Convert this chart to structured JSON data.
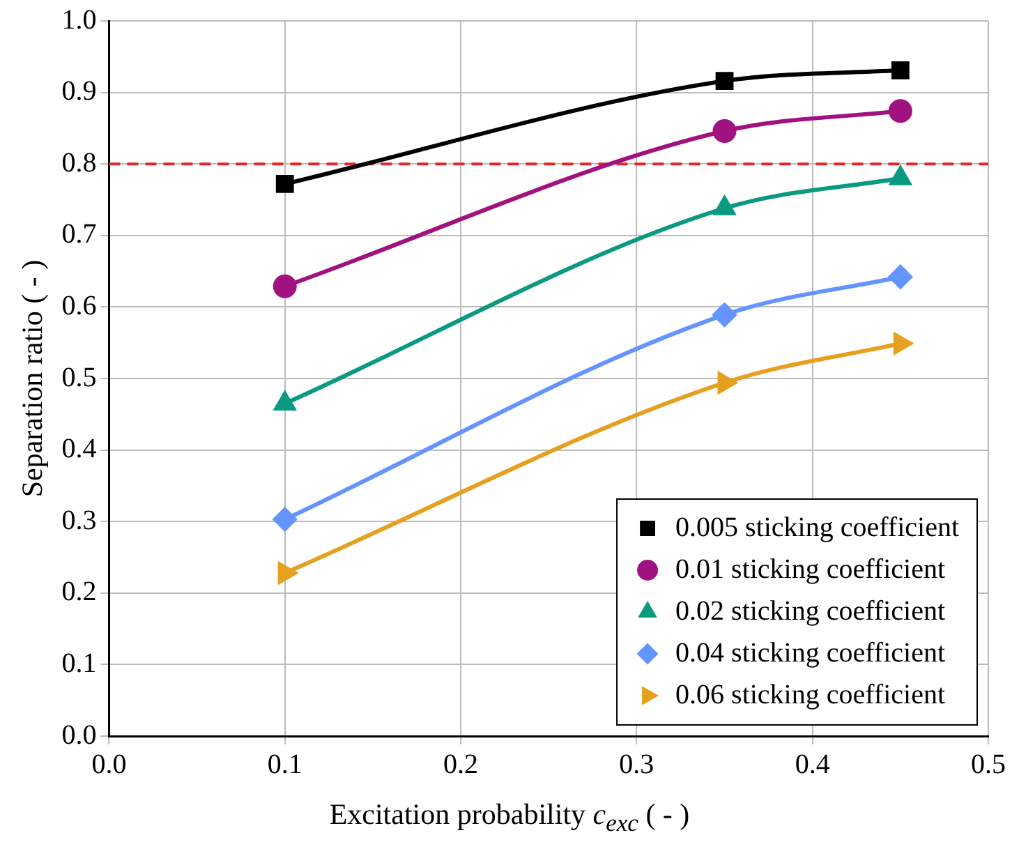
{
  "chart_data": {
    "type": "line",
    "xlabel": "Excitation probability c$_{exc}$ ( - )",
    "ylabel": "Separation ratio ( - )",
    "x": [
      0.1,
      0.35,
      0.45
    ],
    "series": [
      {
        "name": "0.005 sticking coefficient",
        "color": "#000000",
        "marker": "square",
        "values": [
          0.772,
          0.916,
          0.931
        ]
      },
      {
        "name": "0.01 sticking coefficient",
        "color": "#a0127f",
        "marker": "circle",
        "values": [
          0.629,
          0.846,
          0.874
        ]
      },
      {
        "name": "0.02 sticking coefficient",
        "color": "#0a9a82",
        "marker": "triangle",
        "values": [
          0.465,
          0.738,
          0.78
        ]
      },
      {
        "name": "0.04 sticking coefficient",
        "color": "#6495ff",
        "marker": "diamond",
        "values": [
          0.303,
          0.589,
          0.642
        ]
      },
      {
        "name": "0.06 sticking coefficient",
        "color": "#e6a020",
        "marker": "triangle-right",
        "values": [
          0.228,
          0.494,
          0.549
        ]
      }
    ],
    "xlim": [
      0,
      0.5
    ],
    "xticks": [
      {
        "value": 0,
        "label": "0.0"
      },
      0.1,
      0.2,
      0.3,
      0.4,
      0.5
    ],
    "ylim": [
      0,
      1
    ],
    "yticks": [
      {
        "value": 0,
        "label": "0.0"
      },
      0.1,
      0.2,
      0.3,
      0.4,
      0.5,
      0.6,
      0.7,
      0.8,
      0.9,
      {
        "value": 1,
        "label": "1.0"
      }
    ],
    "ref_lines": [
      {
        "axis": "y",
        "value": 0.8,
        "color": "#e8262a",
        "line_style": "dashed"
      }
    ],
    "grid": true,
    "legend": "bottom right",
    "line_style": "solid"
  }
}
